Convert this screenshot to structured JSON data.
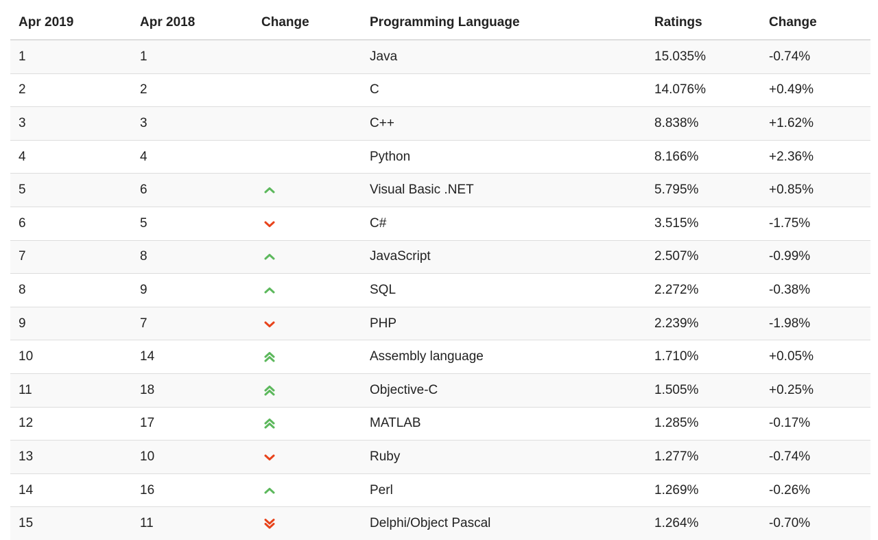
{
  "table": {
    "headers": [
      "Apr 2019",
      "Apr 2018",
      "Change",
      "Programming Language",
      "Ratings",
      "Change"
    ],
    "colors": {
      "up": "#5cb85c",
      "down": "#e8431b"
    },
    "rows": [
      {
        "apr2019": "1",
        "apr2018": "1",
        "trend": "none",
        "language": "Java",
        "rating": "15.035%",
        "change": "-0.74%"
      },
      {
        "apr2019": "2",
        "apr2018": "2",
        "trend": "none",
        "language": "C",
        "rating": "14.076%",
        "change": "+0.49%"
      },
      {
        "apr2019": "3",
        "apr2018": "3",
        "trend": "none",
        "language": "C++",
        "rating": "8.838%",
        "change": "+1.62%"
      },
      {
        "apr2019": "4",
        "apr2018": "4",
        "trend": "none",
        "language": "Python",
        "rating": "8.166%",
        "change": "+2.36%"
      },
      {
        "apr2019": "5",
        "apr2018": "6",
        "trend": "up",
        "language": "Visual Basic .NET",
        "rating": "5.795%",
        "change": "+0.85%"
      },
      {
        "apr2019": "6",
        "apr2018": "5",
        "trend": "down",
        "language": "C#",
        "rating": "3.515%",
        "change": "-1.75%"
      },
      {
        "apr2019": "7",
        "apr2018": "8",
        "trend": "up",
        "language": "JavaScript",
        "rating": "2.507%",
        "change": "-0.99%"
      },
      {
        "apr2019": "8",
        "apr2018": "9",
        "trend": "up",
        "language": "SQL",
        "rating": "2.272%",
        "change": "-0.38%"
      },
      {
        "apr2019": "9",
        "apr2018": "7",
        "trend": "down",
        "language": "PHP",
        "rating": "2.239%",
        "change": "-1.98%"
      },
      {
        "apr2019": "10",
        "apr2018": "14",
        "trend": "up-double",
        "language": "Assembly language",
        "rating": "1.710%",
        "change": "+0.05%"
      },
      {
        "apr2019": "11",
        "apr2018": "18",
        "trend": "up-double",
        "language": "Objective-C",
        "rating": "1.505%",
        "change": "+0.25%"
      },
      {
        "apr2019": "12",
        "apr2018": "17",
        "trend": "up-double",
        "language": "MATLAB",
        "rating": "1.285%",
        "change": "-0.17%"
      },
      {
        "apr2019": "13",
        "apr2018": "10",
        "trend": "down",
        "language": "Ruby",
        "rating": "1.277%",
        "change": "-0.74%"
      },
      {
        "apr2019": "14",
        "apr2018": "16",
        "trend": "up",
        "language": "Perl",
        "rating": "1.269%",
        "change": "-0.26%"
      },
      {
        "apr2019": "15",
        "apr2018": "11",
        "trend": "down-double",
        "language": "Delphi/Object Pascal",
        "rating": "1.264%",
        "change": "-0.70%"
      }
    ]
  }
}
